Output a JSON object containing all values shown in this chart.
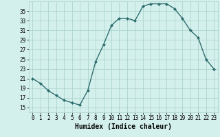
{
  "x": [
    0,
    1,
    2,
    3,
    4,
    5,
    6,
    7,
    8,
    9,
    10,
    11,
    12,
    13,
    14,
    15,
    16,
    17,
    18,
    19,
    20,
    21,
    22,
    23
  ],
  "y": [
    21,
    20,
    18.5,
    17.5,
    16.5,
    16,
    15.5,
    18.5,
    24.5,
    28,
    32,
    33.5,
    33.5,
    33,
    36,
    36.5,
    36.5,
    36.5,
    35.5,
    33.5,
    31,
    29.5,
    25,
    23
  ],
  "line_color": "#2e6e6e",
  "marker": "D",
  "marker_size": 2,
  "bg_color": "#d4f0ec",
  "grid_color": "#aed4ce",
  "xlabel": "Humidex (Indice chaleur)",
  "ylim": [
    14,
    37
  ],
  "xlim": [
    -0.5,
    23.5
  ],
  "yticks": [
    15,
    17,
    19,
    21,
    23,
    25,
    27,
    29,
    31,
    33,
    35
  ],
  "xticks": [
    0,
    1,
    2,
    3,
    4,
    5,
    6,
    7,
    8,
    9,
    10,
    11,
    12,
    13,
    14,
    15,
    16,
    17,
    18,
    19,
    20,
    21,
    22,
    23
  ],
  "tick_fontsize": 5.5,
  "xlabel_fontsize": 7,
  "line_width": 1.0
}
